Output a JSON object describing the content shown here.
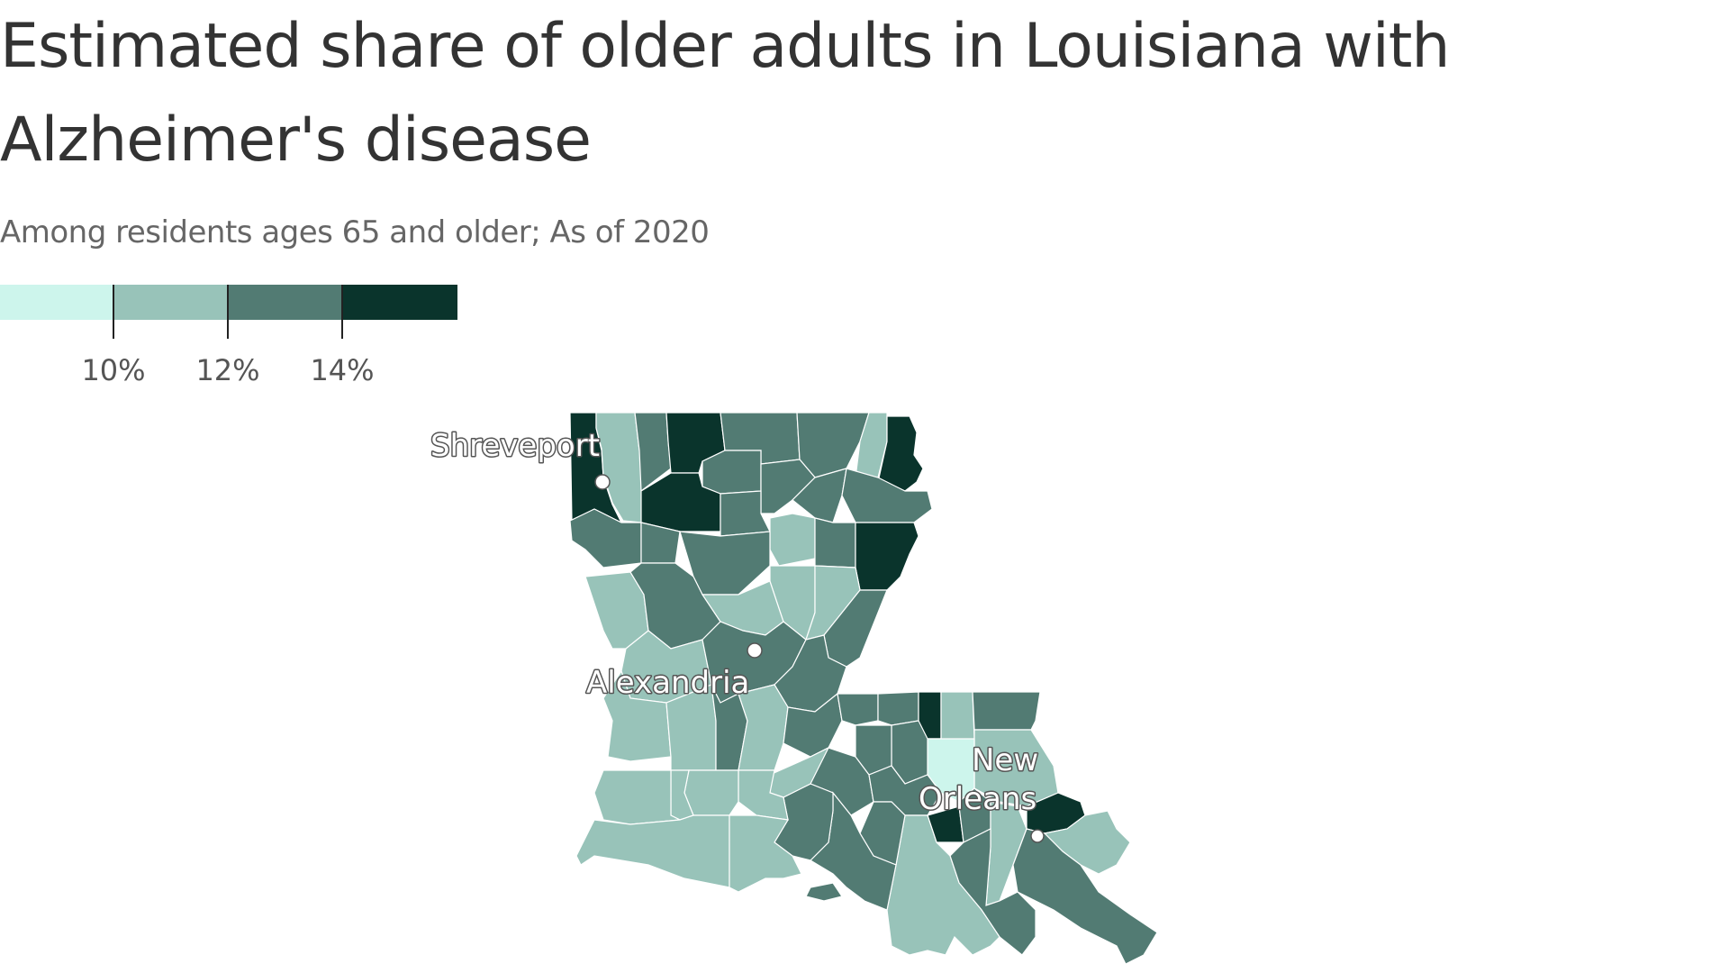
{
  "title": "Estimated share of older adults in Louisiana with Alzheimer's disease",
  "subtitle": "Among residents ages 65 and older; As of 2020",
  "legend": {
    "bins": [
      {
        "label": "",
        "color": "#cdf5ec"
      },
      {
        "label": "",
        "color": "#98c3b9"
      },
      {
        "label": "",
        "color": "#527b73"
      },
      {
        "label": "",
        "color": "#0a342c"
      }
    ],
    "thresholds": [
      "10%",
      "12%",
      "14%"
    ]
  },
  "colors": {
    "bin_1": "#cdf5ec",
    "bin_2": "#98c3b9",
    "bin_3": "#527b73",
    "bin_4": "#0a342c"
  },
  "cities": {
    "shreveport": "Shreveport",
    "alexandria": "Alexandria",
    "new_orleans_line1": "New",
    "new_orleans_line2": "Orleans"
  }
}
